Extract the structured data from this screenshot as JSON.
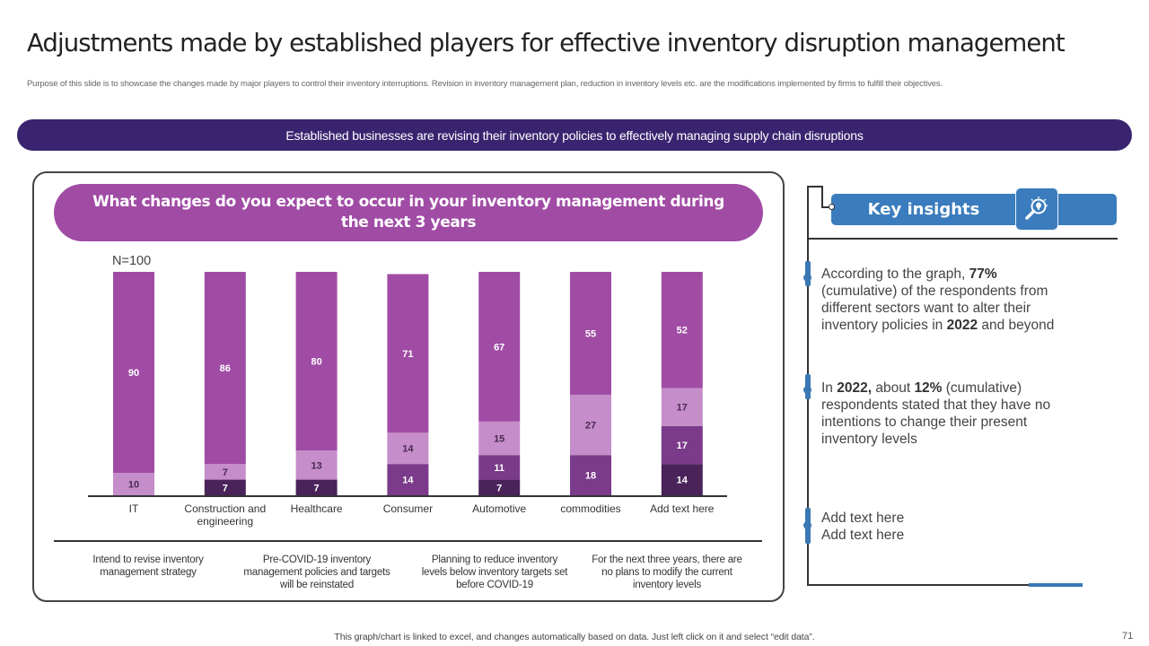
{
  "header": {
    "title": "Adjustments made by established players for effective inventory disruption management",
    "subtitle": "Purpose of this slide is to showcase the changes made by major players to control their inventory interruptions. Revision in inventory management plan, reduction in inventory levels etc. are the modifications implemented by firms to fulfill their objectives."
  },
  "banner": "Established businesses are revising their inventory policies to effectively managing supply chain disruptions",
  "chart_panel": {
    "question": "What changes do you expect to occur in your inventory management during the next 3 years",
    "sample_size": "N=100"
  },
  "chart_data": {
    "type": "bar",
    "stacked": true,
    "title": "What changes do you expect to occur in your inventory management during the next 3 years",
    "annotation": "N=100",
    "categories": [
      "IT",
      "Construction and engineering",
      "Healthcare",
      "Consumer",
      "Automotive",
      "commodities",
      "Add text here"
    ],
    "series": [
      {
        "name": "For the next three years, there are no plans to modify the current inventory levels",
        "color": "#4a235a",
        "label_color": "#ffffff",
        "values": [
          0,
          7,
          7,
          0,
          7,
          0,
          14
        ]
      },
      {
        "name": "Planning to reduce inventory levels below inventory targets set before COVID-19",
        "color": "#7b3a8a",
        "label_color": "#ffffff",
        "values": [
          0,
          0,
          0,
          14,
          11,
          18,
          17
        ]
      },
      {
        "name": "Pre-COVID-19 inventory management policies and targets will be reinstated",
        "color": "#c58dc9",
        "label_color": "#4a2a50",
        "values": [
          10,
          7,
          13,
          14,
          15,
          27,
          17
        ]
      },
      {
        "name": "Intend to revise inventory management strategy",
        "color": "#a04ca5",
        "label_color": "#ffffff",
        "values": [
          90,
          86,
          80,
          71,
          67,
          55,
          52
        ]
      }
    ],
    "xlabel": "",
    "ylabel": "",
    "ylim": [
      0,
      100
    ],
    "grid": false,
    "legend_position": "bottom"
  },
  "legend": [
    "Intend to revise inventory management strategy",
    "Pre-COVID-19 inventory management policies and targets will be reinstated",
    "Planning to reduce inventory levels below inventory targets set before COVID-19",
    "For the next three years, there are no plans to modify the current inventory levels"
  ],
  "insights_panel": {
    "title": "Key insights",
    "icon": "lightbulb-magnifier-icon",
    "accent_color": "#3a7cbd",
    "items": [
      {
        "parts": [
          [
            "According to the graph, ",
            false
          ],
          [
            "77%",
            true
          ],
          [
            " (cumulative) of the respondents from different sectors want to alter their inventory policies in ",
            false
          ],
          [
            "2022",
            true
          ],
          [
            " and beyond",
            false
          ]
        ]
      },
      {
        "parts": [
          [
            "In ",
            false
          ],
          [
            "2022,",
            true
          ],
          [
            " about ",
            false
          ],
          [
            "12%",
            true
          ],
          [
            " (cumulative) respondents stated that they have no intentions to change their present inventory levels",
            false
          ]
        ]
      },
      {
        "parts": [
          [
            "Add text here",
            false
          ]
        ],
        "line2": "Add text here"
      }
    ]
  },
  "footer": {
    "note": "This graph/chart is linked to excel, and changes automatically based on data. Just left click on it and select “edit data”.",
    "page_number": "71"
  }
}
